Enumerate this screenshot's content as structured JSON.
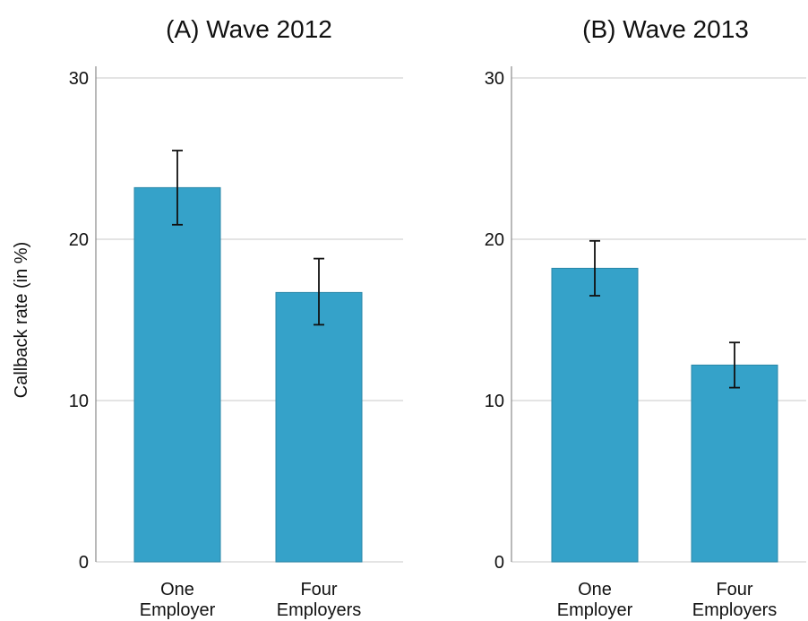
{
  "ylabel": "Callback rate (in %)",
  "colors": {
    "bar": "#35a2c9",
    "bar_edge": "#2a87a8",
    "grid": "#dcdcdc",
    "axis": "#8a8a8a",
    "error_bar": "#111111"
  },
  "chart_data": [
    {
      "type": "bar",
      "title": "(A) Wave 2012",
      "categories": [
        [
          "One",
          "Employer"
        ],
        [
          "Four",
          "Employers"
        ]
      ],
      "values": [
        23.2,
        16.7
      ],
      "error_low": [
        20.9,
        14.7
      ],
      "error_high": [
        25.5,
        18.8
      ],
      "ylim": [
        0,
        30
      ],
      "yticks": [
        0,
        10,
        20,
        30
      ],
      "grid": true
    },
    {
      "type": "bar",
      "title": "(B) Wave 2013",
      "categories": [
        [
          "One",
          "Employer"
        ],
        [
          "Four",
          "Employers"
        ]
      ],
      "values": [
        18.2,
        12.2
      ],
      "error_low": [
        16.5,
        10.8
      ],
      "error_high": [
        19.9,
        13.6
      ],
      "ylim": [
        0,
        30
      ],
      "yticks": [
        0,
        10,
        20,
        30
      ],
      "grid": true
    }
  ]
}
